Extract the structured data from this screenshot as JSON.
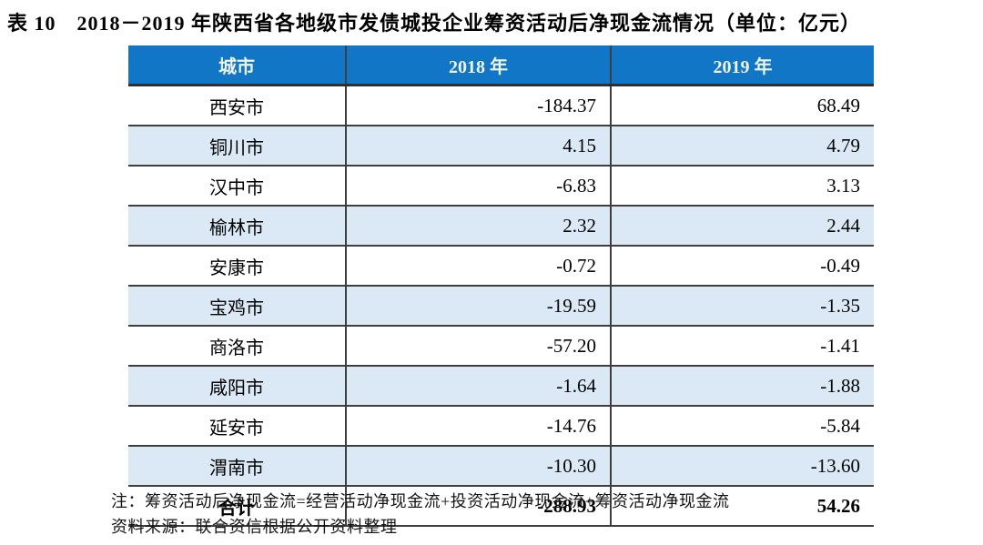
{
  "title": "表 10　2018－2019 年陕西省各地级市发债城投企业筹资活动后净现金流情况（单位：亿元）",
  "colors": {
    "header_bg": "#1276C6",
    "header_text": "#EDF3E1",
    "alt_row_bg": "#DBE8F6",
    "border": "#3E3E3E"
  },
  "table": {
    "headers": [
      "城市",
      "2018 年",
      "2019 年"
    ],
    "rows": [
      {
        "city": "西安市",
        "y2018": "-184.37",
        "y2019": "68.49"
      },
      {
        "city": "铜川市",
        "y2018": "4.15",
        "y2019": "4.79"
      },
      {
        "city": "汉中市",
        "y2018": "-6.83",
        "y2019": "3.13"
      },
      {
        "city": "榆林市",
        "y2018": "2.32",
        "y2019": "2.44"
      },
      {
        "city": "安康市",
        "y2018": "-0.72",
        "y2019": "-0.49"
      },
      {
        "city": "宝鸡市",
        "y2018": "-19.59",
        "y2019": "-1.35"
      },
      {
        "city": "商洛市",
        "y2018": "-57.20",
        "y2019": "-1.41"
      },
      {
        "city": "咸阳市",
        "y2018": "-1.64",
        "y2019": "-1.88"
      },
      {
        "city": "延安市",
        "y2018": "-14.76",
        "y2019": "-5.84"
      },
      {
        "city": "渭南市",
        "y2018": "-10.30",
        "y2019": "-13.60"
      }
    ],
    "total": {
      "city": "合计",
      "y2018": "-288.93",
      "y2019": "54.26"
    }
  },
  "notes": {
    "note": "注：筹资活动后净现金流=经营活动净现金流+投资活动净现金流+筹资活动净现金流",
    "source": "资料来源：联合资信根据公开资料整理"
  },
  "chart_data": {
    "type": "table",
    "title": "2018－2019 年陕西省各地级市发债城投企业筹资活动后净现金流情况（单位：亿元）",
    "columns": [
      "城市",
      "2018 年",
      "2019 年"
    ],
    "rows": [
      [
        "西安市",
        -184.37,
        68.49
      ],
      [
        "铜川市",
        4.15,
        4.79
      ],
      [
        "汉中市",
        -6.83,
        3.13
      ],
      [
        "榆林市",
        2.32,
        2.44
      ],
      [
        "安康市",
        -0.72,
        -0.49
      ],
      [
        "宝鸡市",
        -19.59,
        -1.35
      ],
      [
        "商洛市",
        -57.2,
        -1.41
      ],
      [
        "咸阳市",
        -1.64,
        -1.88
      ],
      [
        "延安市",
        -14.76,
        -5.84
      ],
      [
        "渭南市",
        -10.3,
        -13.6
      ],
      [
        "合计",
        -288.93,
        54.26
      ]
    ]
  }
}
